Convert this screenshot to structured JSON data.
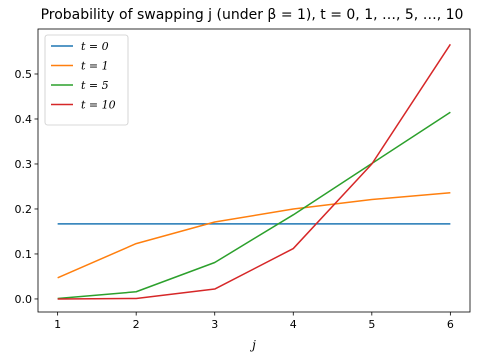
{
  "chart_data": {
    "type": "line",
    "title": "Probability of swapping j (under β = 1), t = 0, 1, …, 5, …, 10",
    "xlabel": "j",
    "ylabel": "",
    "x": [
      1,
      2,
      3,
      4,
      5,
      6
    ],
    "xticks": [
      "1",
      "2",
      "3",
      "4",
      "5",
      "6"
    ],
    "xlim": [
      0.75,
      6.25
    ],
    "ylim": [
      -0.029,
      0.6
    ],
    "yticks": [
      "0.0",
      "0.1",
      "0.2",
      "0.3",
      "0.4",
      "0.5"
    ],
    "ytick_values": [
      0.0,
      0.1,
      0.2,
      0.3,
      0.4,
      0.5
    ],
    "grid": false,
    "legend_placement": "upper-left",
    "series": [
      {
        "name": "t = 0",
        "color": "#1f77b4",
        "values": [
          0.167,
          0.167,
          0.167,
          0.167,
          0.167,
          0.167
        ]
      },
      {
        "name": "t = 1",
        "color": "#ff7f0e",
        "values": [
          0.047,
          0.123,
          0.171,
          0.2,
          0.221,
          0.236
        ]
      },
      {
        "name": "t = 5",
        "color": "#2ca02c",
        "values": [
          0.001,
          0.016,
          0.081,
          0.187,
          0.301,
          0.415
        ]
      },
      {
        "name": "t = 10",
        "color": "#d62728",
        "values": [
          0.0,
          0.001,
          0.022,
          0.112,
          0.3,
          0.566
        ]
      }
    ]
  }
}
